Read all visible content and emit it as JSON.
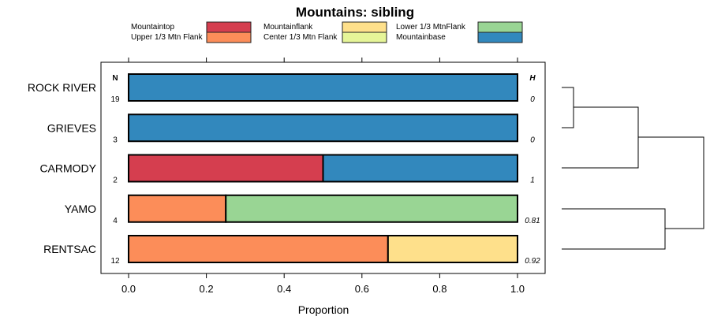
{
  "chart_data": {
    "type": "bar",
    "orientation": "horizontal-stacked",
    "title": "Mountains: sibling",
    "xlabel": "Proportion",
    "xlim": [
      0,
      1
    ],
    "xticks": [
      "0.0",
      "0.2",
      "0.4",
      "0.6",
      "0.8",
      "1.0"
    ],
    "n_header": "N",
    "h_header": "H",
    "legend": [
      {
        "name": "Mountaintop",
        "color": "#d53e4f"
      },
      {
        "name": "Upper 1/3 Mtn Flank",
        "color": "#fc8d59"
      },
      {
        "name": "Mountainflank",
        "color": "#fee08b"
      },
      {
        "name": "Center 1/3 Mtn Flank",
        "color": "#e6f598"
      },
      {
        "name": "Lower 1/3 MtnFlank",
        "color": "#99d594"
      },
      {
        "name": "Mountainbase",
        "color": "#3288bd"
      }
    ],
    "rows": [
      {
        "label": "ROCK RIVER",
        "n": "19",
        "h": "0",
        "segments": [
          {
            "cat": "Mountainbase",
            "value": 1.0
          }
        ]
      },
      {
        "label": "GRIEVES",
        "n": "3",
        "h": "0",
        "segments": [
          {
            "cat": "Mountainbase",
            "value": 1.0
          }
        ]
      },
      {
        "label": "CARMODY",
        "n": "2",
        "h": "1",
        "segments": [
          {
            "cat": "Mountaintop",
            "value": 0.5
          },
          {
            "cat": "Mountainbase",
            "value": 0.5
          }
        ]
      },
      {
        "label": "YAMO",
        "n": "4",
        "h": "0.81",
        "segments": [
          {
            "cat": "Upper 1/3 Mtn Flank",
            "value": 0.25
          },
          {
            "cat": "Lower 1/3 MtnFlank",
            "value": 0.75
          }
        ]
      },
      {
        "label": "RENTSAC",
        "n": "12",
        "h": "0.92",
        "segments": [
          {
            "cat": "Upper 1/3 Mtn Flank",
            "value": 0.667
          },
          {
            "cat": "Mountainflank",
            "value": 0.333
          }
        ]
      }
    ],
    "dendrogram": "((ROCK RIVER,GRIEVES),CARMODY),(YAMO,RENTSAC)"
  }
}
